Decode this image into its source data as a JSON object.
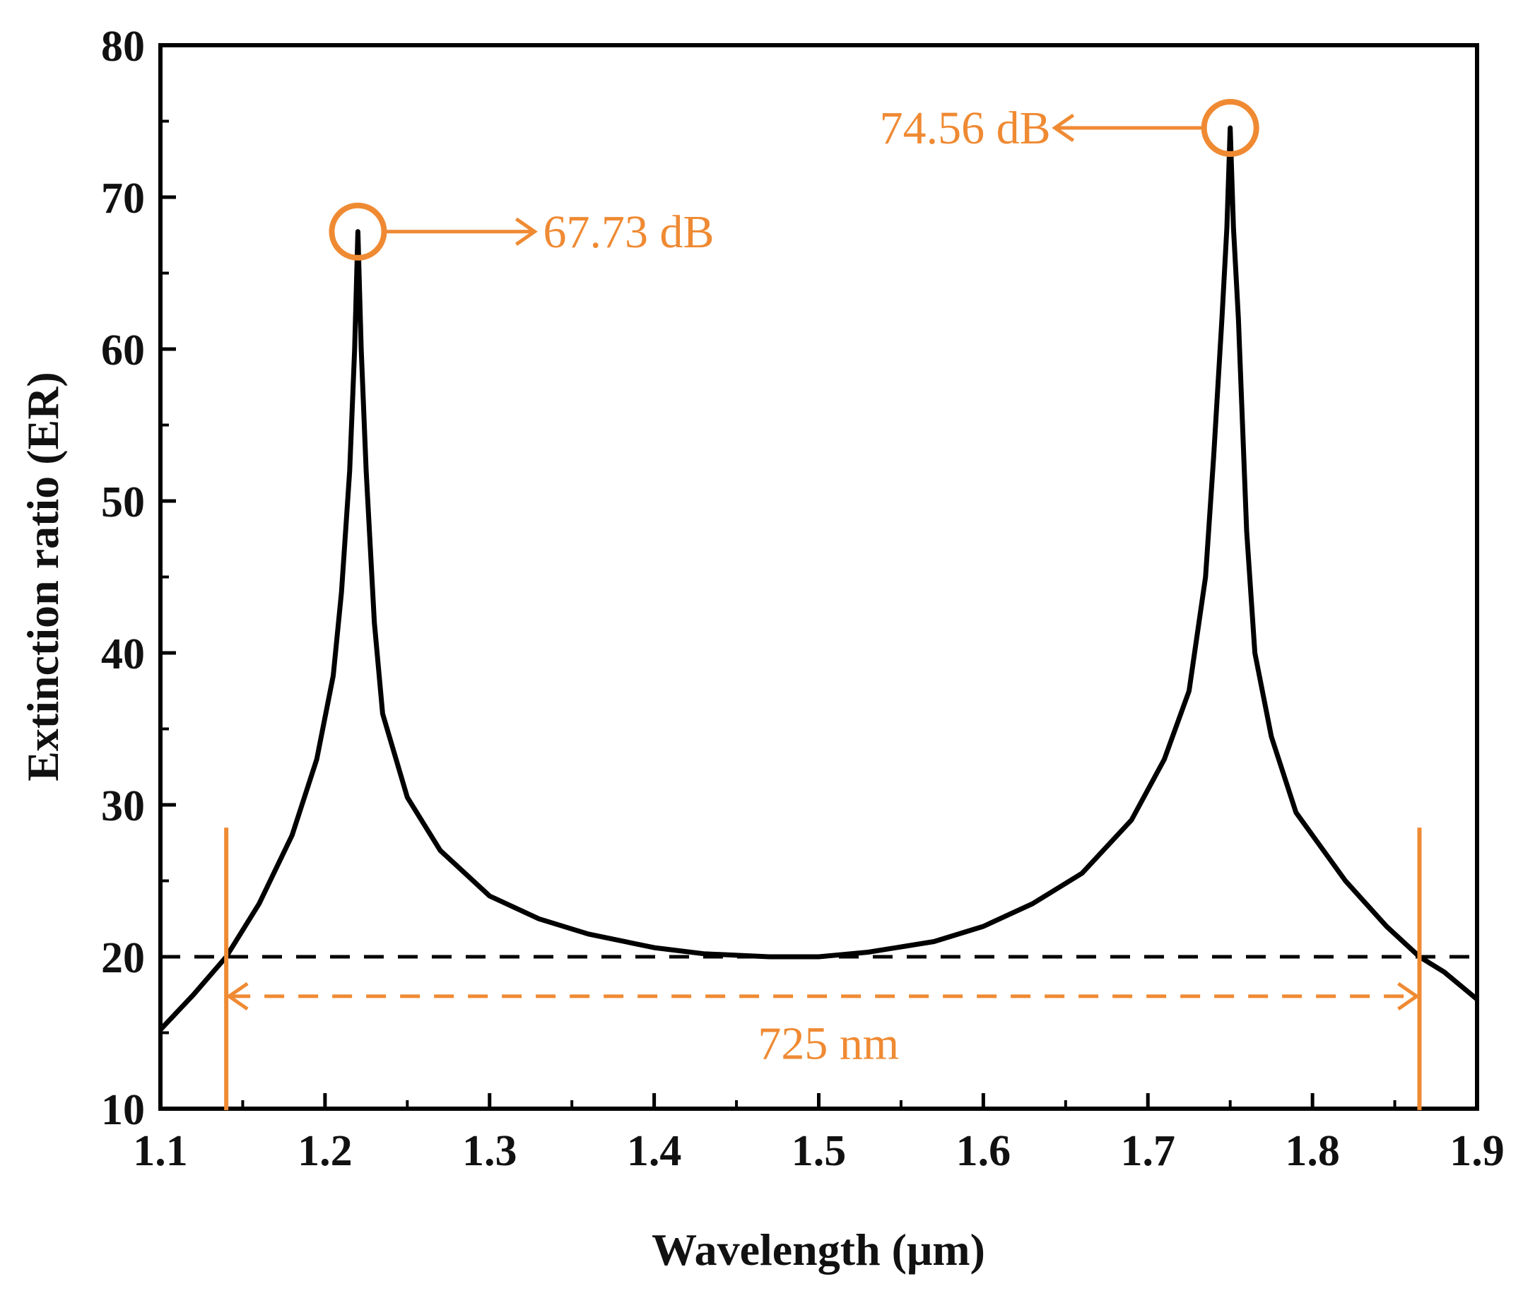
{
  "chart_data": {
    "type": "line",
    "xlabel": "Wavelength (μm)",
    "ylabel": "Extinction ratio (ER)",
    "xlim": [
      1.1,
      1.9
    ],
    "ylim": [
      10,
      80
    ],
    "xticks": [
      1.1,
      1.2,
      1.3,
      1.4,
      1.5,
      1.6,
      1.7,
      1.8,
      1.9
    ],
    "xtick_labels": [
      "1.1",
      "1.2",
      "1.3",
      "1.4",
      "1.5",
      "1.6",
      "1.7",
      "1.8",
      "1.9"
    ],
    "yticks": [
      10,
      20,
      30,
      40,
      50,
      60,
      70,
      80
    ],
    "ytick_labels": [
      "10",
      "20",
      "30",
      "40",
      "50",
      "60",
      "70",
      "80"
    ],
    "grid": false,
    "series": [
      {
        "name": "ER",
        "color": "#000000",
        "x": [
          1.1,
          1.12,
          1.14,
          1.16,
          1.18,
          1.195,
          1.205,
          1.21,
          1.215,
          1.218,
          1.22,
          1.222,
          1.225,
          1.23,
          1.235,
          1.25,
          1.27,
          1.3,
          1.33,
          1.36,
          1.4,
          1.43,
          1.47,
          1.5,
          1.53,
          1.57,
          1.6,
          1.63,
          1.66,
          1.69,
          1.71,
          1.725,
          1.735,
          1.74,
          1.745,
          1.748,
          1.75,
          1.752,
          1.755,
          1.76,
          1.765,
          1.775,
          1.79,
          1.82,
          1.845,
          1.865,
          1.88,
          1.9
        ],
        "y": [
          15.2,
          17.5,
          20.0,
          23.5,
          28.0,
          33.0,
          38.5,
          44.0,
          52.0,
          60.0,
          67.73,
          60.0,
          52.0,
          42.0,
          36.0,
          30.5,
          27.0,
          24.0,
          22.5,
          21.5,
          20.6,
          20.2,
          20.0,
          20.0,
          20.3,
          21.0,
          22.0,
          23.5,
          25.5,
          29.0,
          33.0,
          37.5,
          45.0,
          53.0,
          62.0,
          68.0,
          74.56,
          68.0,
          62.0,
          48.0,
          40.0,
          34.5,
          29.5,
          25.0,
          22.0,
          20.0,
          19.0,
          17.2
        ]
      }
    ],
    "reference_line": {
      "y": 20,
      "style": "dashed",
      "color": "#000000"
    },
    "annotations": {
      "accent_color": "#ef8a33",
      "peak1": {
        "x": 1.22,
        "y": 67.73,
        "label": "67.73 dB"
      },
      "peak2": {
        "x": 1.75,
        "y": 74.56,
        "label": "74.56 dB"
      },
      "bandwidth": {
        "x_start": 1.14,
        "x_end": 1.865,
        "label": "725 nm"
      }
    }
  }
}
